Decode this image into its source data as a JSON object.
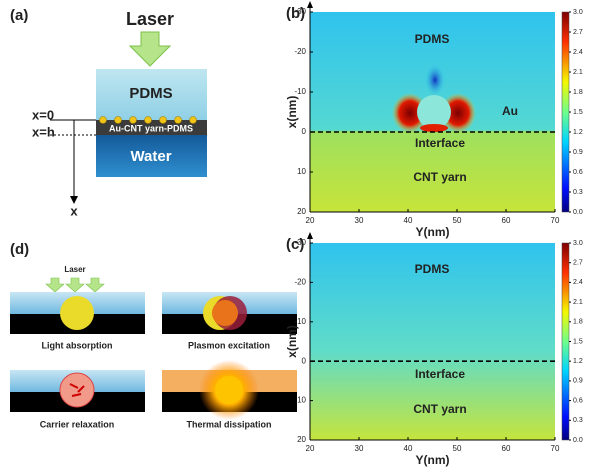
{
  "panel_a": {
    "label": "(a)",
    "laser": "Laser",
    "pdms": "PDMS",
    "layer": "Au-CNT yarn-PDMS",
    "water": "Water",
    "x0": "x=0",
    "xh": "x=h",
    "axis": "x"
  },
  "panel_b": {
    "label": "(b)",
    "xlabel": "Y(nm)",
    "ylabel": "x(nm)",
    "xlim": [
      20,
      70
    ],
    "ylim": [
      -30,
      20
    ],
    "xticks": [
      20,
      30,
      40,
      50,
      60,
      70
    ],
    "yticks": [
      -30,
      -20,
      -10,
      0,
      10,
      20
    ],
    "colorbar_lim": [
      0,
      3
    ],
    "colorbar_ticks": [
      {
        "value": 0,
        "label": "0.0"
      },
      0.3,
      0.6,
      0.9,
      1.2,
      1.5,
      1.8,
      2.1,
      2.4,
      2.7,
      {
        "value": 3,
        "label": "3.0"
      }
    ],
    "annotations": [
      "PDMS",
      "Au",
      "Interface",
      "CNT yarn"
    ]
  },
  "panel_c": {
    "label": "(c)",
    "xlabel": "Y(nm)",
    "ylabel": "x(nm)",
    "xlim": [
      20,
      70
    ],
    "ylim": [
      -30,
      20
    ],
    "xticks": [
      20,
      30,
      40,
      50,
      60,
      70
    ],
    "yticks": [
      -30,
      -20,
      -10,
      0,
      10,
      20
    ],
    "colorbar_lim": [
      0,
      3
    ],
    "colorbar_ticks": [
      {
        "value": 0,
        "label": "0.0"
      },
      0.3,
      0.6,
      0.9,
      1.2,
      1.5,
      1.8,
      2.1,
      2.4,
      2.7,
      {
        "value": 3,
        "label": "3.0"
      }
    ],
    "annotations": [
      "PDMS",
      "Interface",
      "CNT yarn"
    ]
  },
  "panel_d": {
    "label": "(d)",
    "laser": "Laser",
    "steps": [
      "Light absorption",
      "Plasmon excitation",
      "Carrier relaxation",
      "Thermal dissipation"
    ]
  }
}
